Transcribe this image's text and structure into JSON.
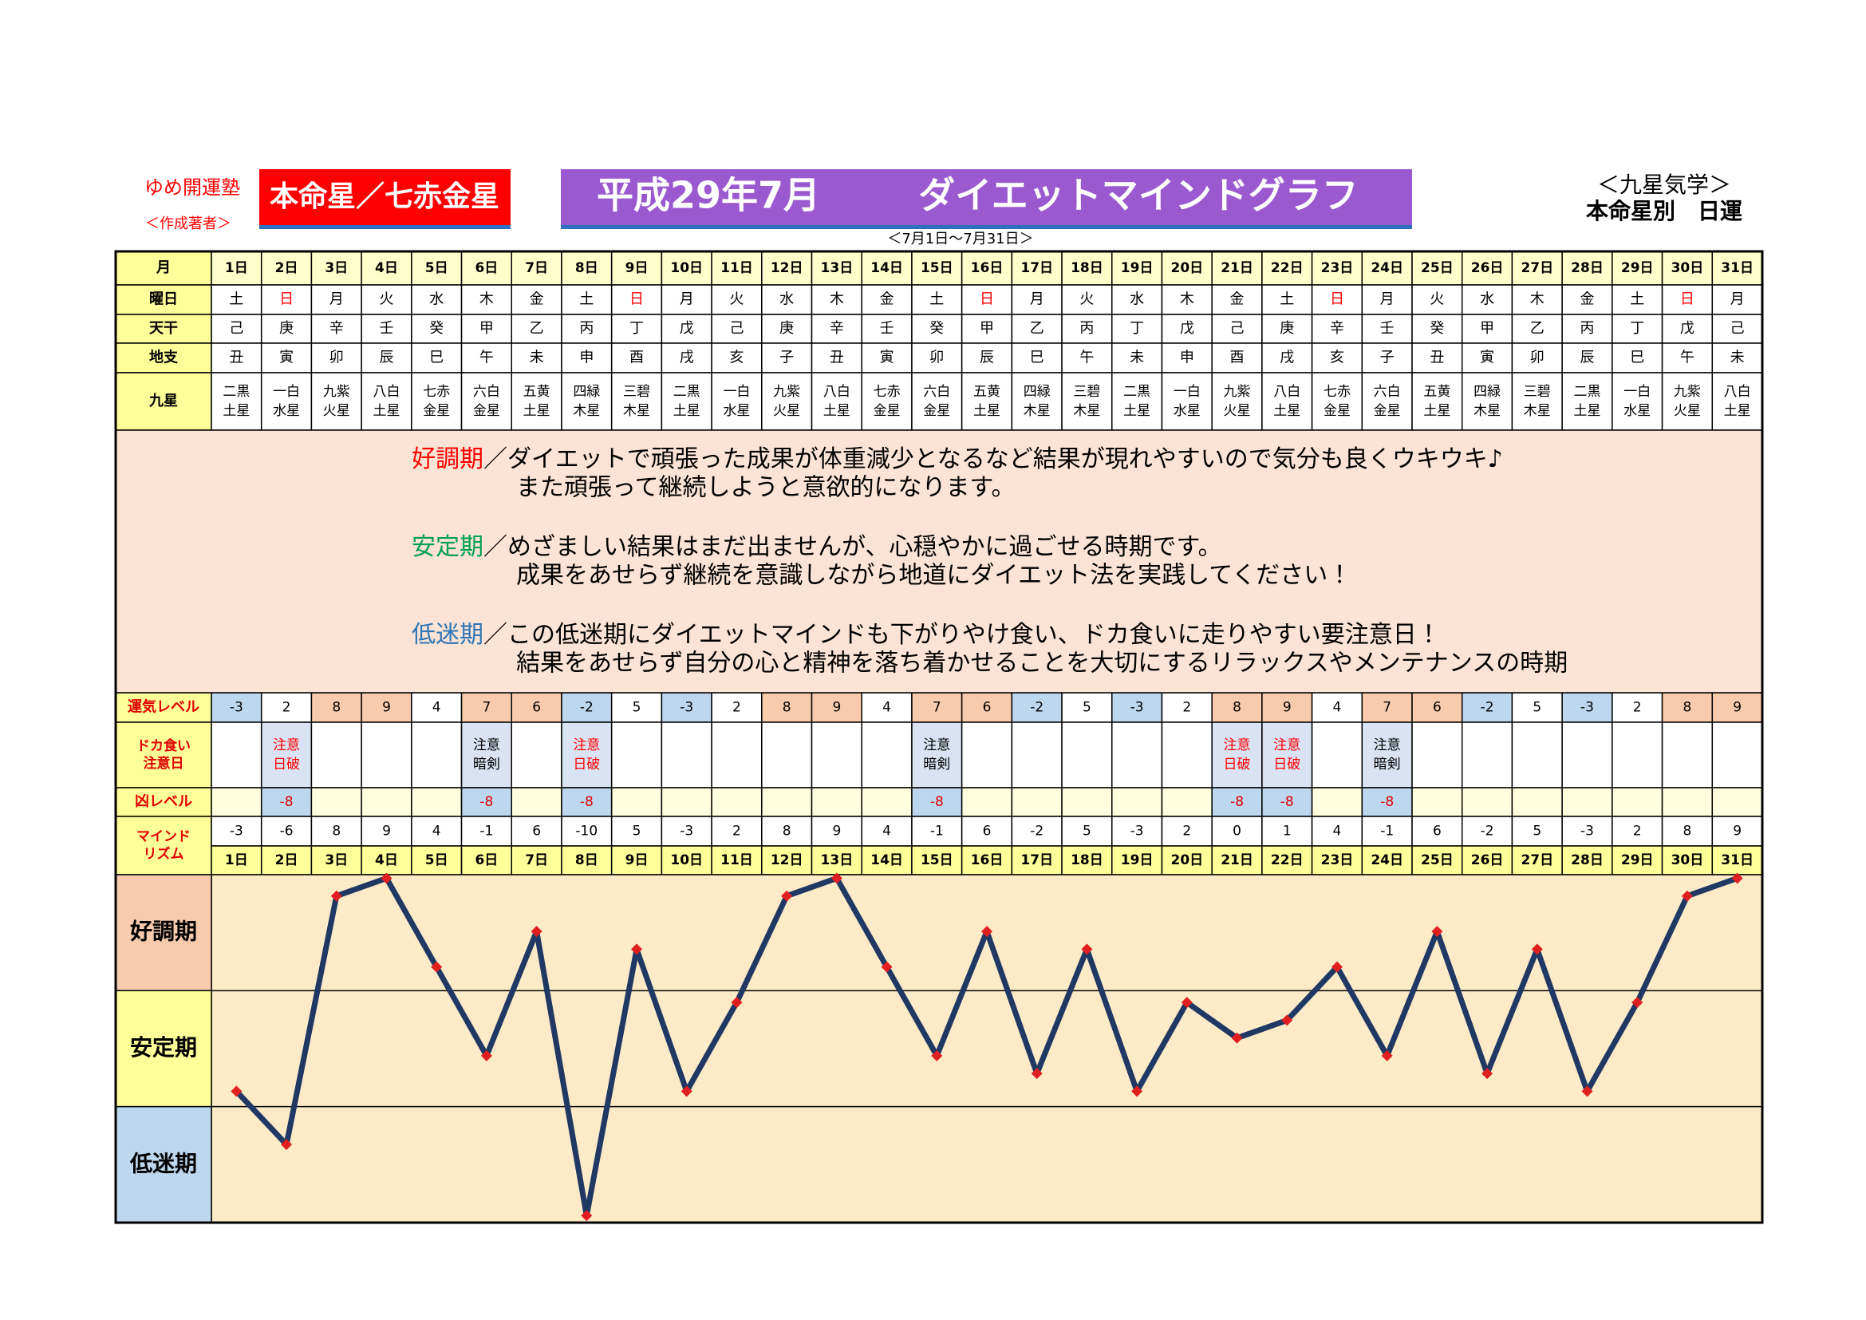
{
  "header": {
    "school": "ゆめ開運塾",
    "author": "＜作成著者＞",
    "star": "本命星／七赤金星",
    "title_left": "平成29年7月",
    "title_right": "ダイエットマインドグラフ",
    "period": "＜7月1日～7月31日＞",
    "kyusei": "＜九星気学＞",
    "subtitle": "本命星別　日運"
  },
  "table": {
    "labels": {
      "day": "月",
      "weekday": "曜日",
      "tenkan": "天干",
      "chishi": "地支",
      "kyusei": "九星",
      "fortune": "運気レベル",
      "caution": [
        "ドカ食い",
        "注意日"
      ],
      "bad": "凶レベル",
      "mind": [
        "マインド",
        "リズム"
      ]
    },
    "weekdays": [
      "土",
      "日",
      "月",
      "火",
      "水",
      "木",
      "金",
      "土",
      "日",
      "月",
      "火",
      "水",
      "木",
      "金",
      "土",
      "日",
      "月",
      "火",
      "水",
      "木",
      "金",
      "土",
      "日",
      "月",
      "火",
      "水",
      "木",
      "金",
      "土",
      "日",
      "月"
    ],
    "sundays": [
      1,
      8,
      15,
      22,
      29
    ],
    "sunday_color": "#ff0000",
    "tenkan": [
      "己",
      "庚",
      "辛",
      "壬",
      "癸",
      "甲",
      "乙",
      "丙",
      "丁",
      "戊",
      "己",
      "庚",
      "辛",
      "壬",
      "癸",
      "甲",
      "乙",
      "丙",
      "丁",
      "戊",
      "己",
      "庚",
      "辛",
      "壬",
      "癸",
      "甲",
      "乙",
      "丙",
      "丁",
      "戊",
      "己"
    ],
    "chishi": [
      "丑",
      "寅",
      "卯",
      "辰",
      "巳",
      "午",
      "未",
      "申",
      "酉",
      "戌",
      "亥",
      "子",
      "丑",
      "寅",
      "卯",
      "辰",
      "巳",
      "午",
      "未",
      "申",
      "酉",
      "戌",
      "亥",
      "子",
      "丑",
      "寅",
      "卯",
      "辰",
      "巳",
      "午",
      "未"
    ],
    "kyusei": [
      [
        "二黒",
        "土星"
      ],
      [
        "一白",
        "水星"
      ],
      [
        "九紫",
        "火星"
      ],
      [
        "八白",
        "土星"
      ],
      [
        "七赤",
        "金星"
      ],
      [
        "六白",
        "金星"
      ],
      [
        "五黄",
        "土星"
      ],
      [
        "四緑",
        "木星"
      ],
      [
        "三碧",
        "木星"
      ],
      [
        "二黒",
        "土星"
      ],
      [
        "一白",
        "水星"
      ],
      [
        "九紫",
        "火星"
      ],
      [
        "八白",
        "土星"
      ],
      [
        "七赤",
        "金星"
      ],
      [
        "六白",
        "金星"
      ],
      [
        "五黄",
        "土星"
      ],
      [
        "四緑",
        "木星"
      ],
      [
        "三碧",
        "木星"
      ],
      [
        "二黒",
        "土星"
      ],
      [
        "一白",
        "水星"
      ],
      [
        "九紫",
        "火星"
      ],
      [
        "八白",
        "土星"
      ],
      [
        "七赤",
        "金星"
      ],
      [
        "六白",
        "金星"
      ],
      [
        "五黄",
        "土星"
      ],
      [
        "四緑",
        "木星"
      ],
      [
        "三碧",
        "木星"
      ],
      [
        "二黒",
        "土星"
      ],
      [
        "一白",
        "水星"
      ],
      [
        "九紫",
        "火星"
      ],
      [
        "八白",
        "土星"
      ]
    ],
    "fortune_levels": [
      -3,
      2,
      8,
      9,
      4,
      7,
      6,
      -2,
      5,
      -3,
      2,
      8,
      9,
      4,
      7,
      6,
      -2,
      5,
      -3,
      2,
      8,
      9,
      4,
      7,
      6,
      -2,
      5,
      -3,
      2,
      8,
      9
    ],
    "caution": [
      null,
      {
        "lines": [
          "注意",
          "日破"
        ],
        "color": "#ff0000"
      },
      null,
      null,
      null,
      {
        "lines": [
          "注意",
          "暗剣"
        ],
        "color": "#000000"
      },
      null,
      {
        "lines": [
          "注意",
          "日破"
        ],
        "color": "#ff0000"
      },
      null,
      null,
      null,
      null,
      null,
      null,
      {
        "lines": [
          "注意",
          "暗剣"
        ],
        "color": "#000000"
      },
      null,
      null,
      null,
      null,
      null,
      {
        "lines": [
          "注意",
          "日破"
        ],
        "color": "#ff0000"
      },
      {
        "lines": [
          "注意",
          "日破"
        ],
        "color": "#ff0000"
      },
      null,
      {
        "lines": [
          "注意",
          "暗剣"
        ],
        "color": "#000000"
      },
      null,
      null,
      null,
      null,
      null,
      null,
      null
    ],
    "bad_levels": [
      null,
      -8,
      null,
      null,
      null,
      -8,
      null,
      -8,
      null,
      null,
      null,
      null,
      null,
      null,
      -8,
      null,
      null,
      null,
      null,
      null,
      -8,
      -8,
      null,
      -8,
      null,
      null,
      null,
      null,
      null,
      null,
      null
    ]
  },
  "description": [
    {
      "term": "好調期",
      "color": "#ff0000",
      "lines": [
        "／ダイエットで頑張った成果が体重減少となるなど結果が現れやすいので気分も良くウキウキ♪",
        "また頑張って継続しようと意欲的になります。"
      ]
    },
    {
      "term": "安定期",
      "color": "#00a050",
      "lines": [
        "／めざましい結果はまだ出ませんが、心穏やかに過ごせる時期です。",
        "成果をあせらず継続を意識しながら地道にダイエット法を実践してください！"
      ]
    },
    {
      "term": "低迷期",
      "color": "#2e75b6",
      "lines": [
        "／この低迷期にダイエットマインドも下がりやけ食い、ドカ食いに走りやすい要注意日！",
        "結果をあせらず自分の心と精神を落ち着かせることを大切にするリラックスやメンテナンスの時期"
      ]
    }
  ],
  "chart_data": {
    "type": "line",
    "categories": [
      "1日",
      "2日",
      "3日",
      "4日",
      "5日",
      "6日",
      "7日",
      "8日",
      "9日",
      "10日",
      "11日",
      "12日",
      "13日",
      "14日",
      "15日",
      "16日",
      "17日",
      "18日",
      "19日",
      "20日",
      "21日",
      "22日",
      "23日",
      "24日",
      "25日",
      "26日",
      "27日",
      "28日",
      "29日",
      "30日",
      "31日"
    ],
    "values": [
      -3,
      -6,
      8,
      9,
      4,
      -1,
      6,
      -10,
      5,
      -3,
      2,
      8,
      9,
      4,
      -1,
      6,
      -2,
      5,
      -3,
      2,
      0,
      1,
      4,
      -1,
      6,
      -2,
      5,
      -3,
      2,
      8,
      9
    ],
    "ylim": [
      -10.4,
      9.2
    ],
    "bands": [
      "好調期",
      "安定期",
      "低迷期"
    ],
    "band_colors": [
      "#f8cbad",
      "#ffff99",
      "#bdd7ee"
    ],
    "plot_color": "#fdebc8",
    "line_color": "#1f3864",
    "marker_color": "#e02020"
  }
}
